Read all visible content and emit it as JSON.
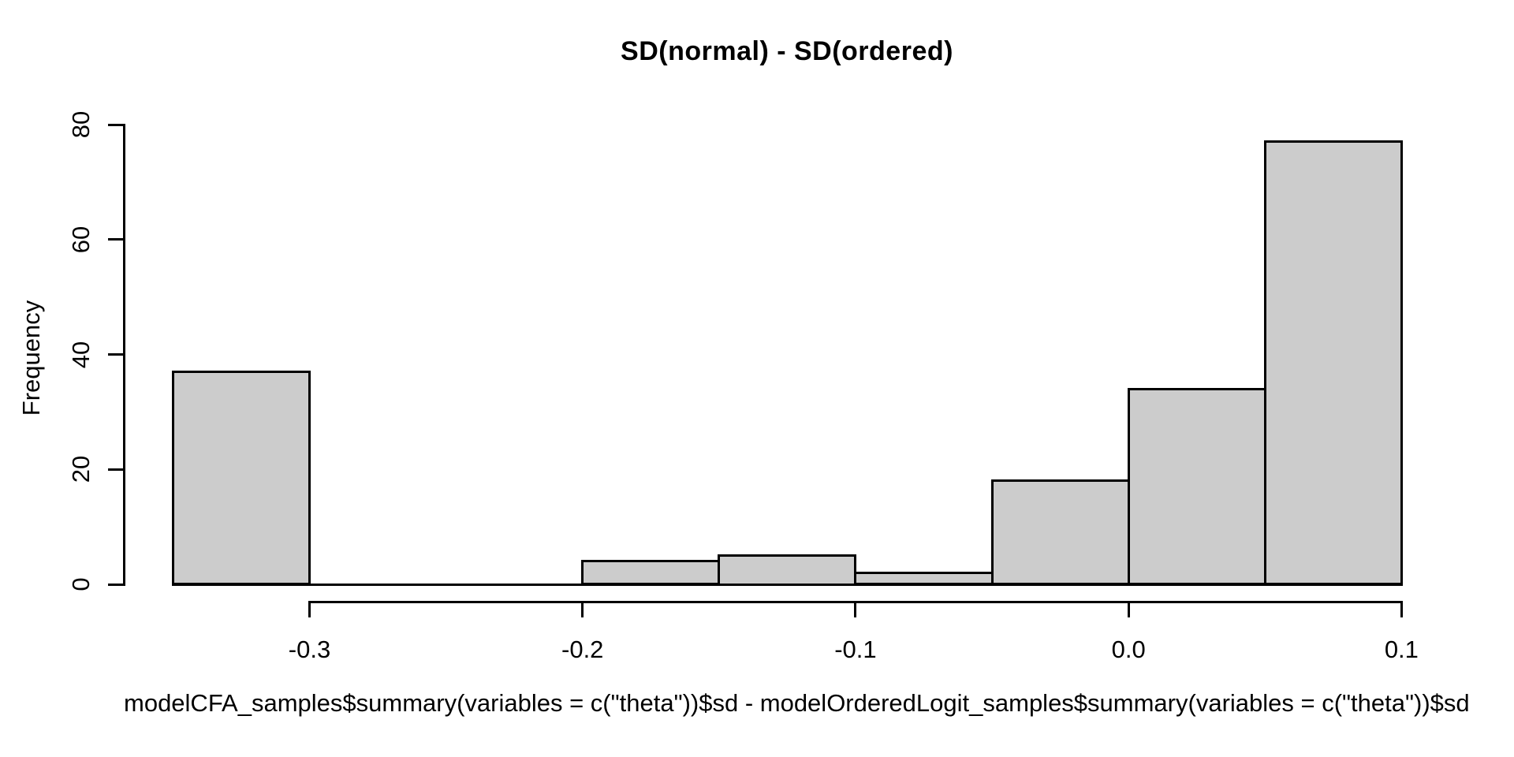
{
  "chart_data": {
    "type": "bar",
    "subtype": "histogram",
    "title": "SD(normal) - SD(ordered)",
    "xlabel": "modelCFA_samples$summary(variables = c(\"theta\"))$sd - modelOrderedLogit_samples$summary(variables = c(\"theta\"))$sd",
    "ylabel": "Frequency",
    "breaks": [
      -0.35,
      -0.3,
      -0.25,
      -0.2,
      -0.15,
      -0.1,
      -0.05,
      0.0,
      0.05,
      0.1
    ],
    "counts": [
      37,
      0,
      0,
      4,
      5,
      2,
      18,
      34,
      77
    ],
    "x_ticks": [
      -0.3,
      -0.2,
      -0.1,
      0.0,
      0.1
    ],
    "x_tick_labels": [
      "-0.3",
      "-0.2",
      "-0.1",
      "0.0",
      "0.1"
    ],
    "y_ticks": [
      0,
      20,
      40,
      60,
      80
    ],
    "y_tick_labels": [
      "0",
      "20",
      "40",
      "60",
      "80"
    ],
    "xlim": [
      -0.35,
      0.1
    ],
    "ylim": [
      0,
      80
    ],
    "grid": false,
    "legend": null,
    "bar_fill": "#cccccc",
    "bar_border": "#000000",
    "background": "#ffffff",
    "text_color": "#000000"
  }
}
